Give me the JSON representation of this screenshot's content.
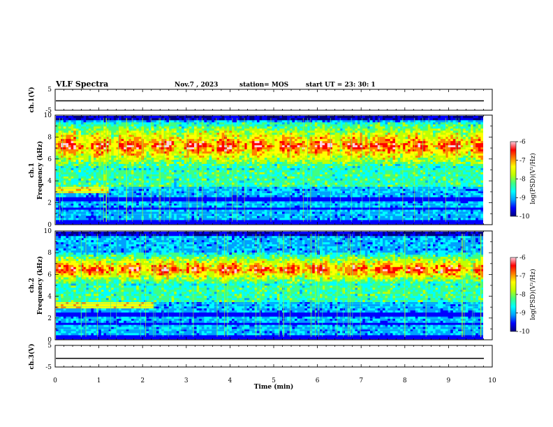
{
  "header": {
    "title": "VLF Spectra",
    "date": "Nov.7 , 2023",
    "station": "station= MOS",
    "start": "start UT = 23: 30: 1"
  },
  "colors": {
    "colormap": [
      "#000080",
      "#0000ff",
      "#00a0ff",
      "#00ffff",
      "#40ff80",
      "#c0ff00",
      "#ffff00",
      "#ff8000",
      "#ff0000",
      "#ffd0e0"
    ]
  },
  "chart_data": [
    {
      "type": "line",
      "ylabel": "ch.1(V)",
      "ylim": [
        -5,
        5
      ],
      "yticks": [
        "5",
        "-5"
      ],
      "level": -0.5
    },
    {
      "type": "heatmap",
      "ylabel_top": "ch.1",
      "ylabel": "Frequency (kHz)",
      "ylim": [
        0,
        10
      ],
      "yticks": [
        "0",
        "2",
        "4",
        "6",
        "8",
        "10"
      ],
      "xlim": [
        0,
        10
      ],
      "colorbar": {
        "label": "log(PSD)(V²/Hz)",
        "range": [
          -10,
          -6
        ],
        "ticks": [
          "-6",
          "-7",
          "-8",
          "-9",
          "-10"
        ]
      },
      "intense_band_khz": [
        5,
        9.5
      ],
      "early_band_khz": 3.2,
      "early_band_end_min": 1.2
    },
    {
      "type": "heatmap",
      "ylabel_top": "ch.2",
      "ylabel": "Frequency (kHz)",
      "ylim": [
        0,
        10
      ],
      "yticks": [
        "0",
        "2",
        "4",
        "6",
        "8",
        "10"
      ],
      "xlim": [
        0,
        10
      ],
      "colorbar": {
        "label": "log(PSD)(V²/Hz)",
        "range": [
          -10,
          -6
        ],
        "ticks": [
          "-6",
          "-7",
          "-8",
          "-9",
          "-10"
        ]
      },
      "intense_band_khz": [
        5,
        8
      ],
      "early_band_khz": 3.2,
      "early_band_end_min": 2.2
    },
    {
      "type": "line",
      "ylabel": "ch.3(V)",
      "ylim": [
        -5,
        5
      ],
      "yticks": [
        "5",
        "-5"
      ],
      "level": -1
    }
  ],
  "xaxis": {
    "label": "Time (min)",
    "ticks": [
      "0",
      "1",
      "2",
      "3",
      "4",
      "5",
      "6",
      "7",
      "8",
      "9",
      "10"
    ]
  }
}
